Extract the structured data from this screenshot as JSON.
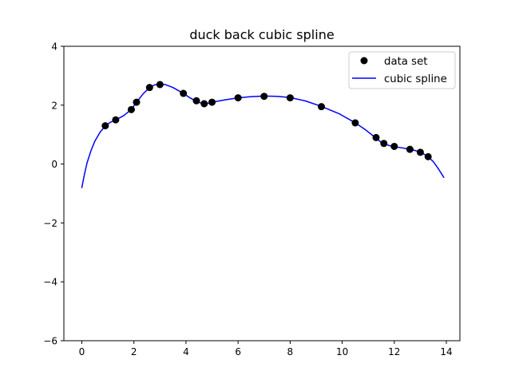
{
  "chart_data": {
    "type": "scatter",
    "title": "duck back cubic spline",
    "xlabel": "",
    "ylabel": "",
    "xlim": [
      -0.69,
      14.52
    ],
    "ylim": [
      -6,
      4
    ],
    "xticks": [
      0,
      2,
      4,
      6,
      8,
      10,
      12,
      14
    ],
    "yticks": [
      -6,
      -4,
      -2,
      0,
      2,
      4
    ],
    "grid": false,
    "legend_position": "top-right",
    "series": [
      {
        "name": "data set",
        "kind": "points",
        "color": "#000000",
        "points": [
          [
            0.9,
            1.3
          ],
          [
            1.3,
            1.5
          ],
          [
            1.9,
            1.85
          ],
          [
            2.1,
            2.1
          ],
          [
            2.6,
            2.6
          ],
          [
            3.0,
            2.7
          ],
          [
            3.9,
            2.4
          ],
          [
            4.4,
            2.15
          ],
          [
            4.7,
            2.05
          ],
          [
            5.0,
            2.1
          ],
          [
            6.0,
            2.25
          ],
          [
            7.0,
            2.3
          ],
          [
            8.0,
            2.25
          ],
          [
            9.2,
            1.95
          ],
          [
            10.5,
            1.4
          ],
          [
            11.3,
            0.9
          ],
          [
            11.6,
            0.7
          ],
          [
            12.0,
            0.6
          ],
          [
            12.6,
            0.5
          ],
          [
            13.0,
            0.4
          ],
          [
            13.3,
            0.25
          ]
        ]
      },
      {
        "name": "cubic spline",
        "kind": "line",
        "color": "#0000ff",
        "points": [
          [
            0.0,
            -0.8
          ],
          [
            0.1,
            -0.35
          ],
          [
            0.2,
            0.04
          ],
          [
            0.35,
            0.45
          ],
          [
            0.5,
            0.78
          ],
          [
            0.7,
            1.08
          ],
          [
            0.9,
            1.3
          ],
          [
            1.1,
            1.42
          ],
          [
            1.3,
            1.5
          ],
          [
            1.6,
            1.64
          ],
          [
            1.9,
            1.85
          ],
          [
            2.1,
            2.1
          ],
          [
            2.35,
            2.38
          ],
          [
            2.6,
            2.6
          ],
          [
            2.8,
            2.69
          ],
          [
            3.0,
            2.72
          ],
          [
            3.2,
            2.7
          ],
          [
            3.5,
            2.6
          ],
          [
            3.9,
            2.4
          ],
          [
            4.15,
            2.25
          ],
          [
            4.4,
            2.13
          ],
          [
            4.55,
            2.08
          ],
          [
            4.7,
            2.05
          ],
          [
            4.85,
            2.06
          ],
          [
            5.0,
            2.1
          ],
          [
            5.5,
            2.18
          ],
          [
            6.0,
            2.25
          ],
          [
            6.5,
            2.29
          ],
          [
            7.0,
            2.31
          ],
          [
            7.5,
            2.3
          ],
          [
            8.0,
            2.26
          ],
          [
            8.6,
            2.14
          ],
          [
            9.2,
            1.96
          ],
          [
            9.9,
            1.7
          ],
          [
            10.5,
            1.4
          ],
          [
            10.9,
            1.16
          ],
          [
            11.3,
            0.88
          ],
          [
            11.45,
            0.77
          ],
          [
            11.6,
            0.69
          ],
          [
            11.8,
            0.63
          ],
          [
            12.0,
            0.59
          ],
          [
            12.3,
            0.55
          ],
          [
            12.6,
            0.5
          ],
          [
            12.8,
            0.46
          ],
          [
            13.0,
            0.4
          ],
          [
            13.15,
            0.33
          ],
          [
            13.3,
            0.25
          ],
          [
            13.5,
            0.08
          ],
          [
            13.7,
            -0.17
          ],
          [
            13.9,
            -0.45
          ]
        ]
      }
    ]
  }
}
